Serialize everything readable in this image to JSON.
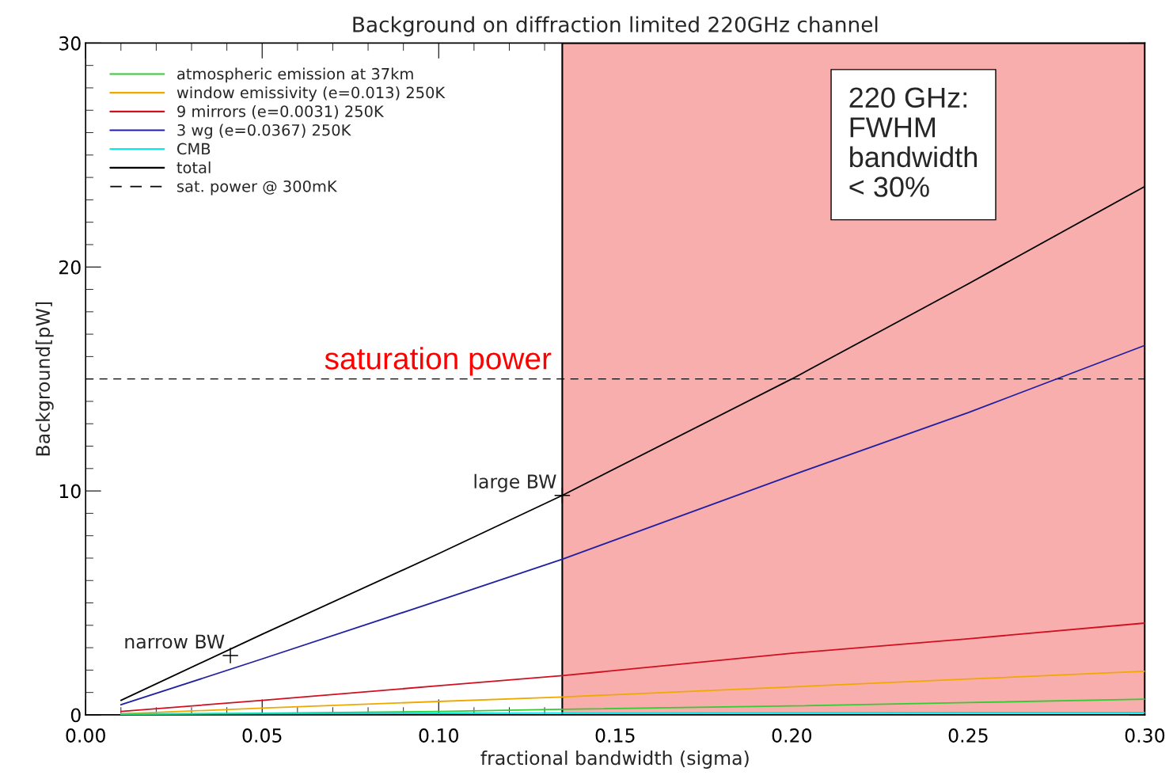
{
  "chart_data": {
    "type": "line",
    "title": "Background on diffraction limited 220GHz channel",
    "xlabel": "fractional bandwidth (sigma)",
    "ylabel": "Background[pW]",
    "x": [
      0.01,
      0.05,
      0.1,
      0.135,
      0.2,
      0.25,
      0.3
    ],
    "series": [
      {
        "name": "atmospheric emission at 37km",
        "color": "#33cc33",
        "values": [
          0.02,
          0.07,
          0.15,
          0.25,
          0.4,
          0.55,
          0.7
        ]
      },
      {
        "name": "window emissivity (e=0.013) 250K",
        "color": "#f0a800",
        "values": [
          0.05,
          0.3,
          0.6,
          0.8,
          1.25,
          1.6,
          1.95
        ]
      },
      {
        "name": "9 mirrors (e=0.0031) 250K",
        "color": "#d01020",
        "values": [
          0.15,
          0.65,
          1.3,
          1.75,
          2.75,
          3.4,
          4.1
        ]
      },
      {
        "name": "3 wg (e=0.0367) 250K",
        "color": "#2020a0",
        "values": [
          0.45,
          2.5,
          5.1,
          6.95,
          10.7,
          13.5,
          16.5
        ]
      },
      {
        "name": "CMB",
        "color": "#00e0e0",
        "values": [
          0.05,
          0.06,
          0.07,
          0.08,
          0.09,
          0.1,
          0.1
        ]
      },
      {
        "name": "total",
        "color": "#000000",
        "values": [
          0.65,
          3.6,
          7.2,
          9.8,
          15.0,
          19.25,
          23.6
        ]
      }
    ],
    "xlim": [
      0.0,
      0.3
    ],
    "xticks": [
      {
        "value": 0.0,
        "label": "0.00"
      },
      0.05,
      {
        "value": 0.1,
        "label": "0.10"
      },
      0.15,
      {
        "value": 0.2,
        "label": "0.20"
      },
      0.25,
      {
        "value": 0.3,
        "label": "0.30"
      }
    ],
    "ylim": [
      0,
      30
    ],
    "yticks": [
      0,
      10,
      20,
      30
    ],
    "ref_lines": [
      {
        "axis": "y",
        "value": 15,
        "label": "sat. power @ 300mK",
        "color": "#000000",
        "line_style": "dashed"
      }
    ],
    "bands": [
      {
        "axis": "x",
        "from": 0.135,
        "to": 0.3,
        "color": "#f9aeae"
      }
    ],
    "annotations": [
      "saturation power",
      {
        "text": "large BW",
        "x": 0.135,
        "y": 9.8
      },
      {
        "text": "narrow BW",
        "x": 0.041,
        "y": 2.65
      },
      "220 GHz:\nFWHM\nbandwidth\n< 30%"
    ],
    "legend": "top left",
    "grid": false,
    "marker": "none",
    "line_style": "solid"
  }
}
